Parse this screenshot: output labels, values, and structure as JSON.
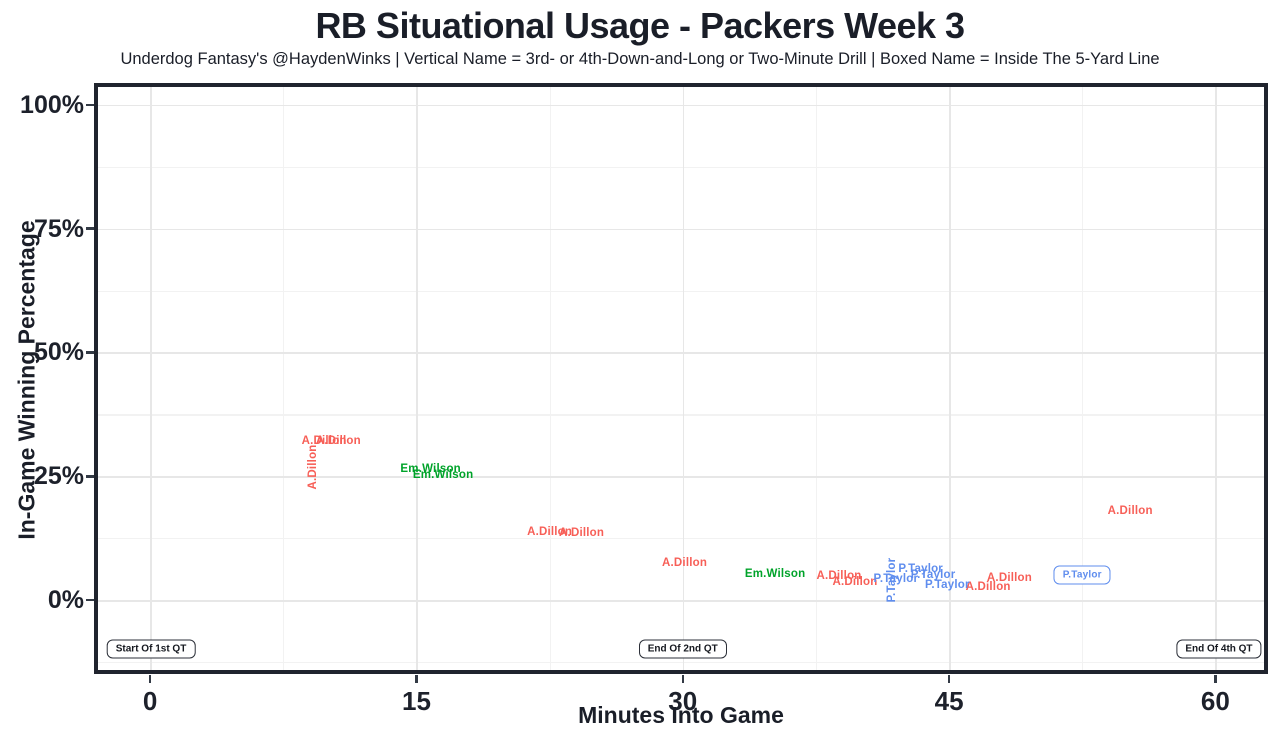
{
  "title": "RB Situational Usage - Packers Week 3",
  "subtitle": "Underdog Fantasy's @HaydenWinks | Vertical Name = 3rd- or 4th-Down-and-Long or Two-Minute Drill | Boxed Name = Inside The 5-Yard Line",
  "colors": {
    "a_dillon": "#f75f57",
    "em_wilson": "#00a32a",
    "p_taylor": "#5f8dee",
    "axis_text": "#1d212b",
    "plot_border": "#20242e",
    "grid_major": "#e7e7e7",
    "grid_minor": "#f2f2f2",
    "annotation_text": "#15181f"
  },
  "chart_data": {
    "type": "scatter",
    "title": "RB Situational Usage - Packers Week 3",
    "subtitle": "Underdog Fantasy's @HaydenWinks | Vertical Name = 3rd- or 4th-Down-and-Long or Two-Minute Drill | Boxed Name = Inside The 5-Yard Line",
    "xlabel": "Minutes Into Game",
    "ylabel": "In-Game Winning Percentage",
    "xlim": [
      -3.05,
      62.85
    ],
    "ylim": [
      -14.5,
      104.0
    ],
    "grid": true,
    "legend": "none",
    "x_ticks": [
      {
        "value": 0,
        "label": "0"
      },
      {
        "value": 15,
        "label": "15"
      },
      {
        "value": 30,
        "label": "30"
      },
      {
        "value": 45,
        "label": "45"
      },
      {
        "value": 60,
        "label": "60"
      }
    ],
    "y_ticks": [
      {
        "value": 0,
        "label": "0%"
      },
      {
        "value": 25,
        "label": "25%"
      },
      {
        "value": 50,
        "label": "50%"
      },
      {
        "value": 75,
        "label": "75%"
      },
      {
        "value": 100,
        "label": "100%"
      }
    ],
    "x_minor_gridlines": [
      7.5,
      22.5,
      37.5,
      52.5
    ],
    "y_minor_gridlines": [
      -12.5,
      12.5,
      37.5,
      62.5,
      87.5
    ],
    "series": [
      {
        "name": "A.Dillon",
        "color_key": "a_dillon",
        "points": [
          {
            "x": 9.8,
            "y": 32.1,
            "style": "plain"
          },
          {
            "x": 10.6,
            "y": 32.1,
            "style": "plain"
          },
          {
            "x": 9.2,
            "y": 26.9,
            "style": "vertical"
          },
          {
            "x": 22.5,
            "y": 13.7,
            "style": "plain"
          },
          {
            "x": 24.3,
            "y": 13.5,
            "style": "plain"
          },
          {
            "x": 30.1,
            "y": 7.5,
            "style": "plain"
          },
          {
            "x": 38.8,
            "y": 4.8,
            "style": "plain"
          },
          {
            "x": 39.7,
            "y": 3.6,
            "style": "plain"
          },
          {
            "x": 47.2,
            "y": 2.6,
            "style": "plain"
          },
          {
            "x": 48.4,
            "y": 4.4,
            "style": "plain"
          },
          {
            "x": 55.2,
            "y": 18.0,
            "style": "plain"
          }
        ]
      },
      {
        "name": "Em.Wilson",
        "color_key": "em_wilson",
        "points": [
          {
            "x": 15.8,
            "y": 26.5,
            "style": "plain"
          },
          {
            "x": 16.5,
            "y": 25.3,
            "style": "plain"
          },
          {
            "x": 35.2,
            "y": 5.3,
            "style": "plain"
          }
        ]
      },
      {
        "name": "P.Taylor",
        "color_key": "p_taylor",
        "points": [
          {
            "x": 41.8,
            "y": 4.0,
            "style": "vertical"
          },
          {
            "x": 42.0,
            "y": 4.2,
            "style": "plain"
          },
          {
            "x": 43.4,
            "y": 6.3,
            "style": "plain"
          },
          {
            "x": 44.1,
            "y": 5.1,
            "style": "plain"
          },
          {
            "x": 44.9,
            "y": 3.0,
            "style": "plain"
          },
          {
            "x": 52.5,
            "y": 5.1,
            "style": "boxed"
          }
        ]
      }
    ],
    "annotations": [
      {
        "label": "Start Of 1st QT",
        "x": 0.05,
        "y": -9.9
      },
      {
        "label": "End Of 2nd QT",
        "x": 30.0,
        "y": -9.9
      },
      {
        "label": "End Of 4th QT",
        "x": 60.2,
        "y": -9.9
      }
    ]
  }
}
